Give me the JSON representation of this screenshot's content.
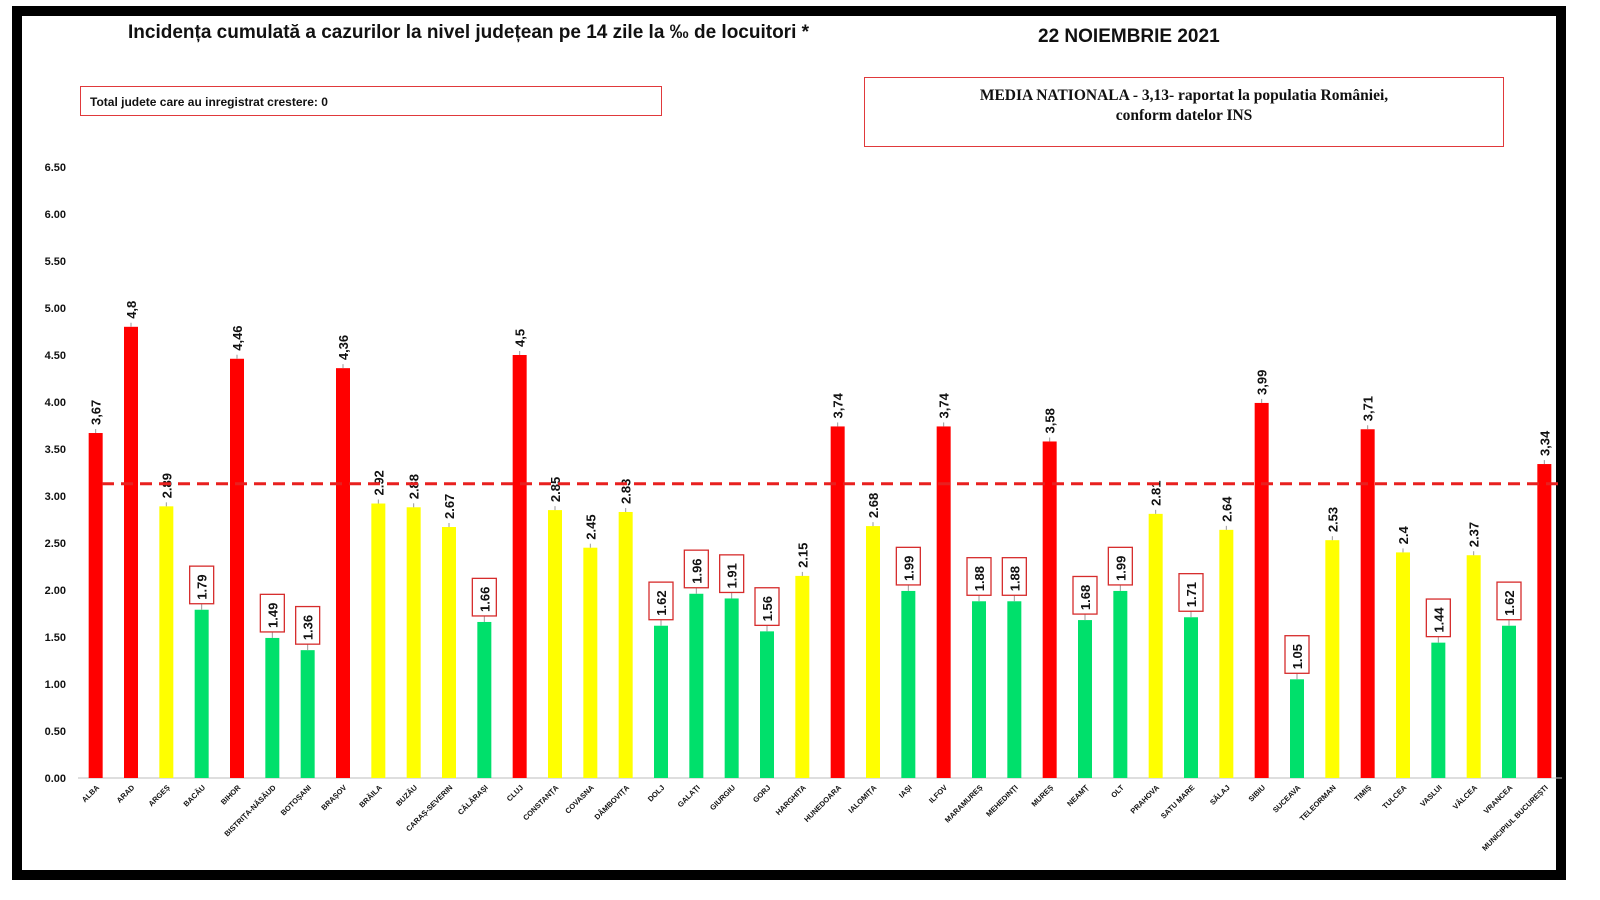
{
  "header": {
    "title": "Incidența cumulată a cazurilor la nivel județean pe 14 zile la ‰ de locuitori *",
    "date": "22 NOIEMBRIE 2021"
  },
  "notes": {
    "increase_total": "Total judete care au inregistrat crestere: 0",
    "national_line1": "MEDIA NATIONALA - 3,13-  raportat la populatia  României,",
    "national_line2": "conform datelor INS"
  },
  "colors": {
    "red": "#ff0000",
    "yellow": "#ffff00",
    "green": "#00e06b",
    "reference_line": "#e8201f",
    "label_box": "#d62c2c"
  },
  "chart_data": {
    "type": "bar",
    "title": "Incidența cumulată a cazurilor la nivel județean pe 14 zile la ‰ de locuitori *",
    "ylim": [
      0,
      6.5
    ],
    "yticks": [
      "0.00",
      "0.50",
      "1.00",
      "1.50",
      "2.00",
      "2.50",
      "3.00",
      "3.50",
      "4.00",
      "4.50",
      "5.00",
      "5.50",
      "6.00",
      "6.50"
    ],
    "reference_line": {
      "name": "MEDIA NATIONALA",
      "value": 3.13
    },
    "categories": [
      "ALBA",
      "ARAD",
      "ARGEȘ",
      "BACĂU",
      "BIHOR",
      "BISTRIȚA-NĂSĂUD",
      "BOTOȘANI",
      "BRAȘOV",
      "BRĂILA",
      "BUZĂU",
      "CARAȘ-SEVERIN",
      "CĂLĂRAȘI",
      "CLUJ",
      "CONSTANȚA",
      "COVASNA",
      "DÂMBOVIȚA",
      "DOLJ",
      "GALAȚI",
      "GIURGIU",
      "GORJ",
      "HARGHITA",
      "HUNEDOARA",
      "IALOMIȚA",
      "IAȘI",
      "ILFOV",
      "MARAMUREȘ",
      "MEHEDINȚI",
      "MUREȘ",
      "NEAMȚ",
      "OLT",
      "PRAHOVA",
      "SATU MARE",
      "SĂLAJ",
      "SIBIU",
      "SUCEAVA",
      "TELEORMAN",
      "TIMIȘ",
      "TULCEA",
      "VASLUI",
      "VÂLCEA",
      "VRANCEA",
      "MUNICIPIUL BUCUREȘTI"
    ],
    "values": [
      3.67,
      4.8,
      2.89,
      1.79,
      4.46,
      1.49,
      1.36,
      4.36,
      2.92,
      2.88,
      2.67,
      1.66,
      4.5,
      2.85,
      2.45,
      2.83,
      1.62,
      1.96,
      1.91,
      1.56,
      2.15,
      3.74,
      2.68,
      1.99,
      3.74,
      1.88,
      1.88,
      3.58,
      1.68,
      1.99,
      2.81,
      1.71,
      2.64,
      3.99,
      1.05,
      2.53,
      3.71,
      2.4,
      1.44,
      2.37,
      1.62,
      3.34
    ],
    "value_labels": [
      "3,67",
      "4,8",
      "2.89",
      "1.79",
      "4,46",
      "1.49",
      "1.36",
      "4,36",
      "2.92",
      "2.88",
      "2.67",
      "1.66",
      "4,5",
      "2.85",
      "2.45",
      "2.83",
      "1.62",
      "1.96",
      "1.91",
      "1.56",
      "2.15",
      "3,74",
      "2.68",
      "1.99",
      "3,74",
      "1.88",
      "1.88",
      "3,58",
      "1.68",
      "1.99",
      "2.81",
      "1.71",
      "2.64",
      "3,99",
      "1.05",
      "2.53",
      "3,71",
      "2.4",
      "1.44",
      "2.37",
      "1.62",
      "3,34"
    ],
    "bar_colors": [
      "red",
      "red",
      "yellow",
      "green",
      "red",
      "green",
      "green",
      "red",
      "yellow",
      "yellow",
      "yellow",
      "green",
      "red",
      "yellow",
      "yellow",
      "yellow",
      "green",
      "green",
      "green",
      "green",
      "yellow",
      "red",
      "yellow",
      "green",
      "red",
      "green",
      "green",
      "red",
      "green",
      "green",
      "yellow",
      "green",
      "yellow",
      "red",
      "green",
      "yellow",
      "red",
      "yellow",
      "green",
      "yellow",
      "green",
      "red"
    ],
    "boxed_labels": [
      false,
      false,
      false,
      true,
      false,
      true,
      true,
      false,
      false,
      false,
      false,
      true,
      false,
      false,
      false,
      false,
      true,
      true,
      true,
      true,
      false,
      false,
      false,
      true,
      false,
      true,
      true,
      false,
      true,
      true,
      false,
      true,
      false,
      false,
      true,
      false,
      false,
      false,
      true,
      false,
      true,
      false
    ]
  }
}
